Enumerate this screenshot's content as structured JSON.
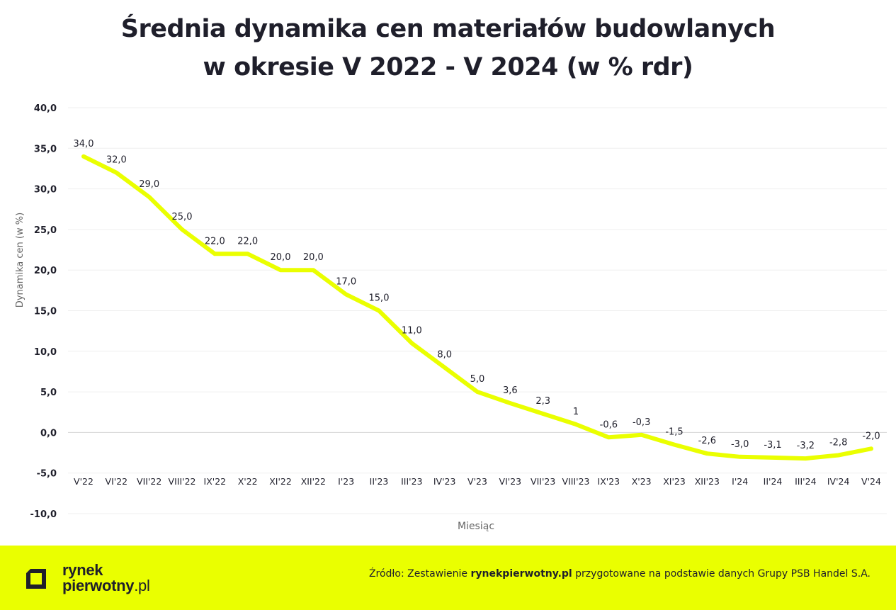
{
  "title": {
    "line1": "Średnia dynamika cen materiałów budowlanych",
    "line2": "w okresie V 2022 - V 2024 (w % rdr)"
  },
  "chart_data": {
    "type": "line",
    "title": "Średnia dynamika cen materiałów budowlanych w okresie V 2022 - V 2024 (w % rdr)",
    "xlabel": "Miesiąc",
    "ylabel": "Dynamika cen (w %)",
    "ylim": [
      -10,
      40
    ],
    "yticks": [
      40,
      35,
      30,
      25,
      20,
      15,
      10,
      5,
      0,
      -5,
      -10
    ],
    "ytick_labels": [
      "40,0",
      "35,0",
      "30,0",
      "25,0",
      "20,0",
      "15,0",
      "10,0",
      "5,0",
      "0,0",
      "-5,0",
      "-10,0"
    ],
    "grid": true,
    "legend": "none",
    "line_color": "#eaff00",
    "categories": [
      "V'22",
      "VI'22",
      "VII'22",
      "VIII'22",
      "IX'22",
      "X'22",
      "XI'22",
      "XII'22",
      "I'23",
      "II'23",
      "III'23",
      "IV'23",
      "V'23",
      "VI'23",
      "VII'23",
      "VIII'23",
      "IX'23",
      "X'23",
      "XI'23",
      "XII'23",
      "I'24",
      "II'24",
      "III'24",
      "IV'24",
      "V'24"
    ],
    "values": [
      34.0,
      32.0,
      29.0,
      25.0,
      22.0,
      22.0,
      20.0,
      20.0,
      17.0,
      15.0,
      11.0,
      8.0,
      5.0,
      3.6,
      2.3,
      1,
      -0.6,
      -0.3,
      -1.5,
      -2.6,
      -3.0,
      -3.1,
      -3.2,
      -2.8,
      -2.0
    ],
    "data_labels": [
      "34,0",
      "32,0",
      "29,0",
      "25,0",
      "22,0",
      "22,0",
      "20,0",
      "20,0",
      "17,0",
      "15,0",
      "11,0",
      "8,0",
      "5,0",
      "3,6",
      "2,3",
      "1",
      "-0,6",
      "-0,3",
      "-1,5",
      "-2,6",
      "-3,0",
      "-3,1",
      "-3,2",
      "-2,8",
      "-2,0"
    ]
  },
  "footer": {
    "background": "#eaff00",
    "logo_line1": "rynek",
    "logo_line2": "pierwotny",
    "logo_domain": ".pl",
    "source_prefix": "Źródło: Zestawienie ",
    "source_brand": "rynekpierwotny.pl",
    "source_suffix": " przygotowane na podstawie danych Grupy PSB Handel S.A."
  }
}
